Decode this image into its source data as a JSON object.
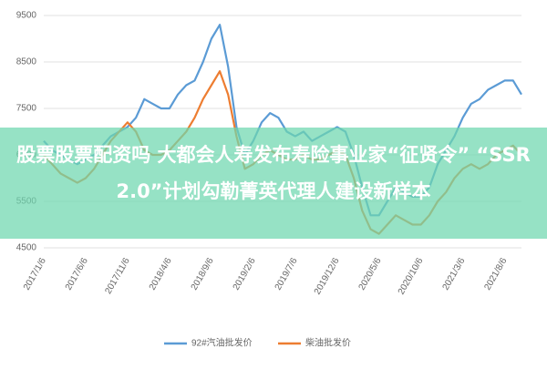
{
  "chart_data": {
    "type": "line",
    "categories": [
      "2017/1/6",
      null,
      null,
      null,
      null,
      "2017/6/6",
      null,
      null,
      null,
      null,
      "2017/11/6",
      null,
      null,
      null,
      null,
      "2018/4/6",
      null,
      null,
      null,
      null,
      "2018/9/6",
      null,
      null,
      null,
      null,
      "2019/2/6",
      null,
      null,
      null,
      null,
      "2019/7/6",
      null,
      null,
      null,
      null,
      "2019/12/6",
      null,
      null,
      null,
      null,
      "2020/5/6",
      null,
      null,
      null,
      null,
      "2020/10/6",
      null,
      null,
      null,
      null,
      "2021/3/6",
      null,
      null,
      null,
      null,
      "2021/8/6",
      null,
      null
    ],
    "series": [
      {
        "name": "92#汽油批发价",
        "color": "#5b9bd5",
        "values": [
          6800,
          6600,
          6500,
          6400,
          6300,
          6400,
          6500,
          6700,
          6900,
          7000,
          7100,
          7300,
          7700,
          7600,
          7500,
          7500,
          7800,
          8000,
          8100,
          8500,
          9000,
          9300,
          8400,
          7100,
          6500,
          6800,
          7200,
          7400,
          7300,
          7000,
          6900,
          7000,
          6800,
          6900,
          7000,
          7100,
          7000,
          6500,
          5800,
          5200,
          5200,
          5500,
          5800,
          5700,
          5600,
          5600,
          5800,
          6300,
          6600,
          6900,
          7300,
          7600,
          7700,
          7900,
          8000,
          8100,
          8100,
          7800
        ]
      },
      {
        "name": "柴油批发价",
        "color": "#ed7d31",
        "values": [
          6500,
          6300,
          6100,
          6000,
          5900,
          6000,
          6200,
          6500,
          6800,
          7000,
          7200,
          7000,
          6600,
          6500,
          6500,
          6600,
          6800,
          7000,
          7300,
          7700,
          8000,
          8300,
          7800,
          6900,
          6200,
          6300,
          6500,
          6600,
          6500,
          6400,
          6400,
          6500,
          6400,
          6400,
          6500,
          6600,
          6500,
          6000,
          5300,
          4900,
          4800,
          5000,
          5200,
          5100,
          5000,
          5000,
          5200,
          5500,
          5700,
          6000,
          6200,
          6300,
          6200,
          6300,
          6500,
          6600,
          6700,
          6500
        ]
      }
    ],
    "ylim": [
      4500,
      9500
    ],
    "yticks": [
      4500,
      5500,
      6500,
      7500,
      8500,
      9500
    ],
    "grid": true,
    "legend": "bottom"
  },
  "overlay_text": "股票股票配资吗 大都会人寿发布寿险事业家“征贤令” “SSR 2.0”计划勾勒菁英代理人建设新样本"
}
